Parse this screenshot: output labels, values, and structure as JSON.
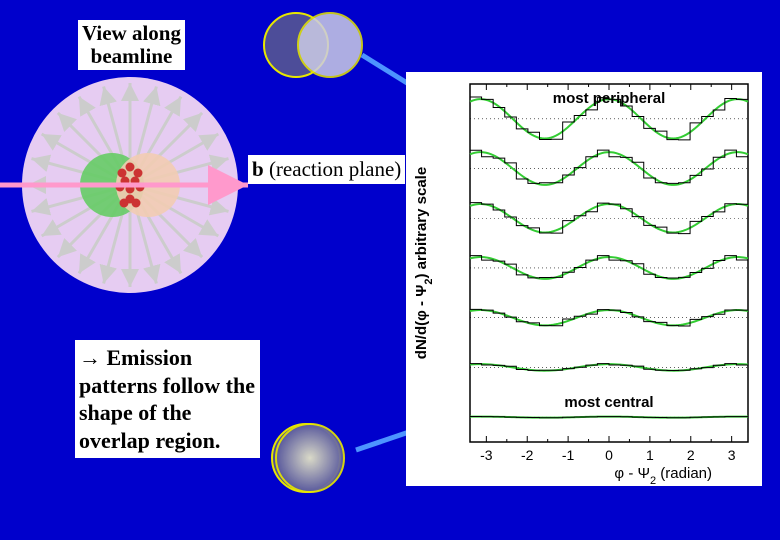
{
  "colors": {
    "background": "#0000cc",
    "bigcircle_fill": "#e6ccf2",
    "nucleus_left": "#66cc66",
    "nucleus_right": "#f2ccb3",
    "overlap_outline": "#e6e600",
    "overlap_fill_dark": "#4d4d99",
    "overlap_fill_light": "#cccce6",
    "ray": "#cccccc",
    "reaction_arrow": "#ff99cc",
    "blue_arrow": "#4d94ff",
    "curve": "#33cc33",
    "axis": "#000000",
    "participant": "#cc3333"
  },
  "labels": {
    "view": "View along\nbeamline",
    "b": "b",
    "b_rest": " (reaction plane)",
    "emission_arrow": "→",
    "emission": " Emission patterns follow the shape of the overlap region."
  },
  "plot": {
    "xlabel": "φ - Ψ",
    "xlabel_sub": "2",
    "xlabel_unit": " (radian)",
    "ylabel_pre": "dN/d(φ - Ψ",
    "ylabel_sub": "2",
    "ylabel_post": ") arbitrary scale",
    "annotation_top": "most peripheral",
    "annotation_bottom": "most central",
    "xlim": [
      -3.4,
      3.4
    ],
    "xticks": [
      -3,
      -2,
      -1,
      0,
      1,
      2,
      3
    ],
    "n_curves": 7,
    "amplitudes": [
      0.18,
      0.15,
      0.13,
      0.1,
      0.07,
      0.03,
      0.005
    ],
    "offsets": [
      6.5,
      5.5,
      4.5,
      3.5,
      2.5,
      1.5,
      0.5
    ],
    "yrange": [
      0,
      7.2
    ],
    "title_fontsize": 15,
    "label_fontsize": 15
  },
  "bigcircle": {
    "n_rays": 24
  }
}
